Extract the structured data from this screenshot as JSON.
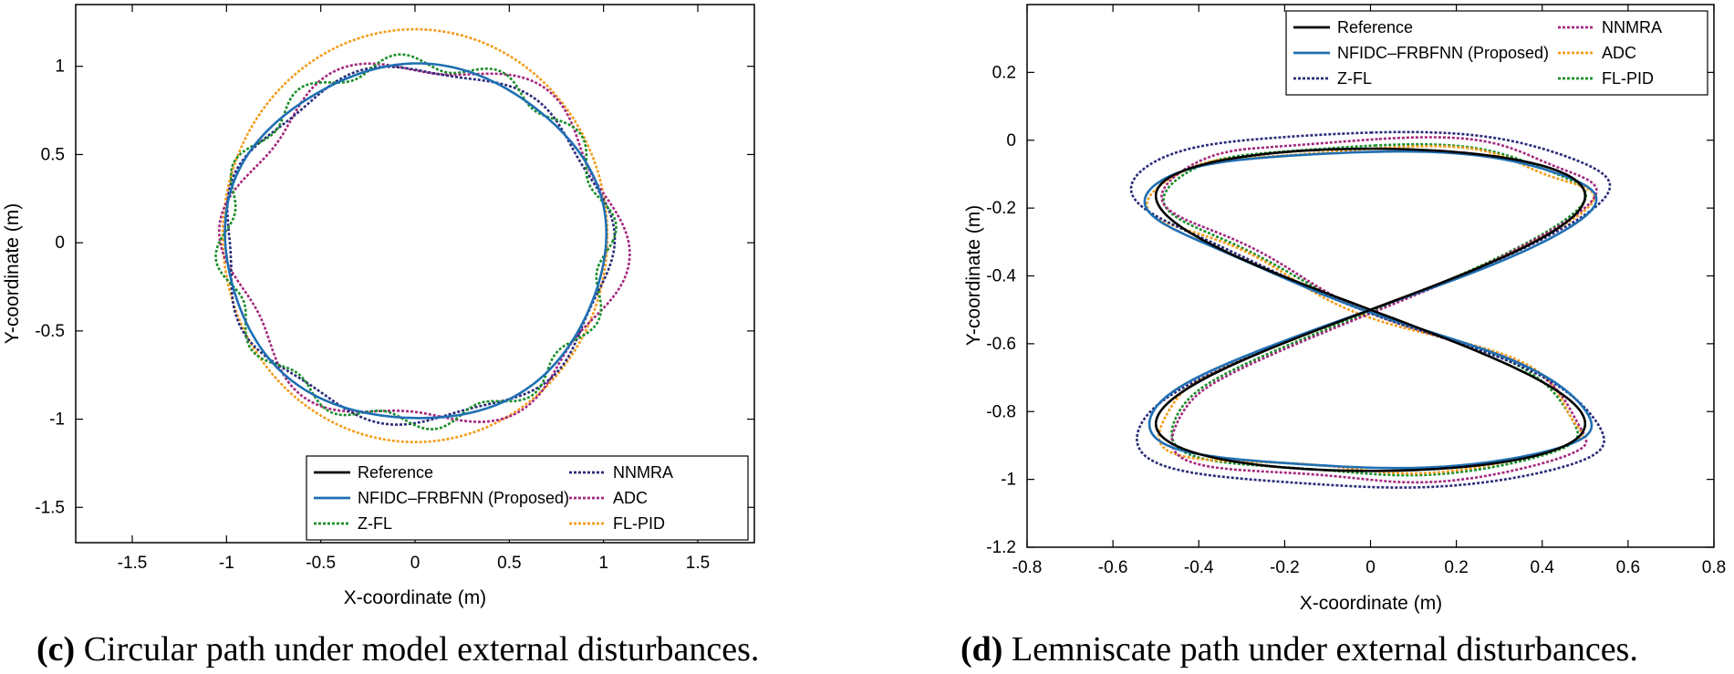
{
  "chart_data": [
    {
      "type": "line",
      "panel": "c",
      "caption_label": "(c)",
      "caption_text": " Circular path under model external disturbances.",
      "title": "",
      "xlabel": "X-coordinate (m)",
      "ylabel": "Y-coordinate (m)",
      "xlim": [
        -1.8,
        1.8
      ],
      "ylim": [
        -1.7,
        1.35
      ],
      "xticks": [
        -1.5,
        -1,
        -0.5,
        0,
        0.5,
        1,
        1.5
      ],
      "xtick_labels": [
        "-1.5",
        "-1",
        "-0.5",
        "0",
        "0.5",
        "1",
        "1.5"
      ],
      "yticks": [
        1,
        0.5,
        0,
        -0.5,
        -1,
        -1.5
      ],
      "ytick_labels": [
        "1",
        "0.5",
        "0",
        "-0.5",
        "-1",
        "-1.5"
      ],
      "legend_position": "bottom-right",
      "series": [
        {
          "name": "Reference",
          "color": "#000000",
          "dash": "solid",
          "shape": "circle",
          "params": {
            "cx": 0,
            "cy": 0,
            "rx": 1.0,
            "ry": 1.0
          }
        },
        {
          "name": "NFIDC–FRBFNN (Proposed)",
          "color": "#1f6fb2",
          "dash": "solid",
          "shape": "circle",
          "params": {
            "cx": 0,
            "cy": 0,
            "rx": 1.01,
            "ry": 1.005,
            "amp": 0.012,
            "freq": 5,
            "phase": 0.3
          }
        },
        {
          "name": "Z-FL",
          "color": "#1a8f2a",
          "dash": "dot",
          "shape": "circle",
          "params": {
            "cx": 0.005,
            "cy": 0.005,
            "rx": 1.02,
            "ry": 1.02,
            "amp": 0.045,
            "freq": 12,
            "phase": 0.5
          }
        },
        {
          "name": "NNMRA",
          "color": "#2b2b7a",
          "dash": "dot",
          "shape": "circle",
          "params": {
            "cx": 0.01,
            "cy": -0.01,
            "rx": 1.02,
            "ry": 1.0,
            "amp": 0.03,
            "freq": 7,
            "phase": 1.2
          }
        },
        {
          "name": "ADC",
          "color": "#a3287f",
          "dash": "dot",
          "shape": "circle",
          "params": {
            "cx": 0.05,
            "cy": 0.0,
            "rx": 1.03,
            "ry": 1.02,
            "amp": 0.06,
            "freq": 6,
            "phase": 2.1
          }
        },
        {
          "name": "FL-PID",
          "color": "#f49b1a",
          "dash": "dot",
          "shape": "circle",
          "params": {
            "cx": 0.0,
            "cy": 0.04,
            "rx": 1.02,
            "ry": 1.17,
            "amp": 0.0,
            "freq": 1,
            "phase": 0
          }
        }
      ],
      "legend_order": [
        "Reference",
        "NFIDC–FRBFNN (Proposed)",
        "Z-FL",
        "NNMRA",
        "ADC",
        "FL-PID"
      ]
    },
    {
      "type": "line",
      "panel": "d",
      "caption_label": "(d)",
      "caption_text": " Lemniscate path under external disturbances.",
      "title": "",
      "xlabel": "X-coordinate (m)",
      "ylabel": "Y-coordinate (m)",
      "xlim": [
        -0.8,
        0.8
      ],
      "ylim": [
        -1.2,
        0.4
      ],
      "xticks": [
        -0.8,
        -0.6,
        -0.4,
        -0.2,
        0,
        0.2,
        0.4,
        0.6,
        0.8
      ],
      "xtick_labels": [
        "-0.8",
        "-0.6",
        "-0.4",
        "-0.2",
        "0",
        "0.2",
        "0.4",
        "0.6",
        "0.8"
      ],
      "yticks": [
        0.2,
        0,
        -0.2,
        -0.4,
        -0.6,
        -0.8,
        -1,
        -1.2
      ],
      "ytick_labels": [
        "0.2",
        "0",
        "-0.2",
        "-0.4",
        "-0.6",
        "-0.8",
        "-1",
        "-1.2"
      ],
      "legend_position": "top-right",
      "series": [
        {
          "name": "Reference",
          "color": "#000000",
          "dash": "solid",
          "shape": "lemniscate",
          "params": {
            "cx": 0,
            "cy": -0.5,
            "ax": 0.5,
            "ay": 0.5,
            "amp": 0.0
          }
        },
        {
          "name": "NFIDC–FRBFNN (Proposed)",
          "color": "#1f6fb2",
          "dash": "solid",
          "shape": "lemniscate",
          "params": {
            "cx": 0.0,
            "cy": -0.5,
            "ax": 0.52,
            "ay": 0.49,
            "amp": 0.008
          }
        },
        {
          "name": "Z-FL",
          "color": "#2b2b7a",
          "dash": "dot",
          "shape": "lemniscate",
          "params": {
            "cx": 0.0,
            "cy": -0.5,
            "ax": 0.55,
            "ay": 0.55,
            "amp": 0.01
          }
        },
        {
          "name": "NNMRA",
          "color": "#a3287f",
          "dash": "dot",
          "shape": "lemniscate",
          "params": {
            "cx": 0.02,
            "cy": -0.5,
            "ax": 0.49,
            "ay": 0.53,
            "amp": 0.02
          }
        },
        {
          "name": "ADC",
          "color": "#f49b1a",
          "dash": "dot",
          "shape": "lemniscate",
          "params": {
            "cx": 0.0,
            "cy": -0.5,
            "ax": 0.5,
            "ay": 0.5,
            "amp": 0.025
          }
        },
        {
          "name": "FL-PID",
          "color": "#1a8f2a",
          "dash": "dot",
          "shape": "lemniscate",
          "params": {
            "cx": 0.01,
            "cy": -0.5,
            "ax": 0.48,
            "ay": 0.51,
            "amp": 0.015
          }
        }
      ],
      "legend_order": [
        "Reference",
        "NFIDC–FRBFNN (Proposed)",
        "Z-FL",
        "NNMRA",
        "ADC",
        "FL-PID"
      ]
    }
  ]
}
